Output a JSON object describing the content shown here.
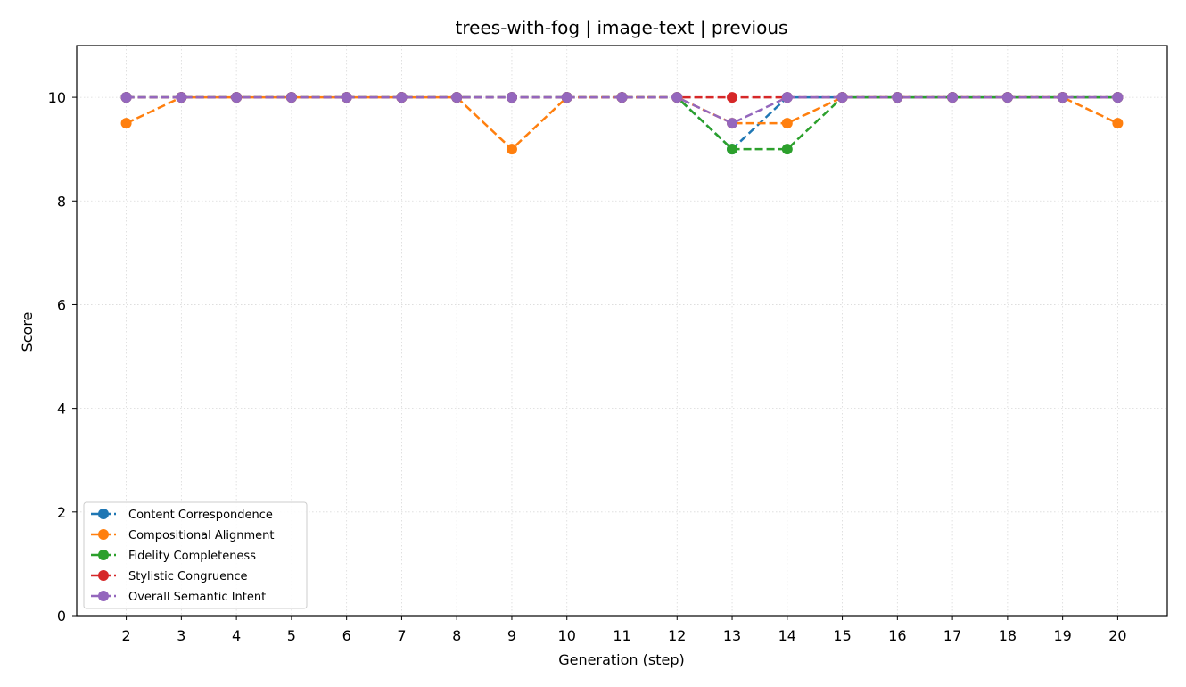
{
  "chart_data": {
    "type": "line",
    "title": "trees-with-fog | image-text | previous",
    "xlabel": "Generation (step)",
    "ylabel": "Score",
    "x": [
      2,
      3,
      4,
      5,
      6,
      7,
      8,
      9,
      10,
      11,
      12,
      13,
      14,
      15,
      16,
      17,
      18,
      19,
      20
    ],
    "xlim": [
      1.1,
      20.9
    ],
    "ylim": [
      0,
      11
    ],
    "yticks": [
      0,
      2,
      4,
      6,
      8,
      10
    ],
    "grid": true,
    "legend_position": "lower-left",
    "line_style": "dashed",
    "marker": "circle",
    "series": [
      {
        "name": "Content Correspondence",
        "color": "#1f77b4",
        "values": [
          10,
          10,
          10,
          10,
          10,
          10,
          10,
          10,
          10,
          10,
          10,
          9,
          10,
          10,
          10,
          10,
          10,
          10,
          10
        ]
      },
      {
        "name": "Compositional Alignment",
        "color": "#ff7f0e",
        "values": [
          9.5,
          10,
          10,
          10,
          10,
          10,
          10,
          9,
          10,
          10,
          10,
          9.5,
          9.5,
          10,
          10,
          10,
          10,
          10,
          9.5
        ]
      },
      {
        "name": "Fidelity Completeness",
        "color": "#2ca02c",
        "values": [
          10,
          10,
          10,
          10,
          10,
          10,
          10,
          10,
          10,
          10,
          10,
          9,
          9,
          10,
          10,
          10,
          10,
          10,
          10
        ]
      },
      {
        "name": "Stylistic Congruence",
        "color": "#d62728",
        "values": [
          10,
          10,
          10,
          10,
          10,
          10,
          10,
          10,
          10,
          10,
          10,
          10,
          10,
          10,
          10,
          10,
          10,
          10,
          10
        ]
      },
      {
        "name": "Overall Semantic Intent",
        "color": "#9467bd",
        "values": [
          10,
          10,
          10,
          10,
          10,
          10,
          10,
          10,
          10,
          10,
          10,
          9.5,
          10,
          10,
          10,
          10,
          10,
          10,
          10
        ]
      }
    ]
  }
}
